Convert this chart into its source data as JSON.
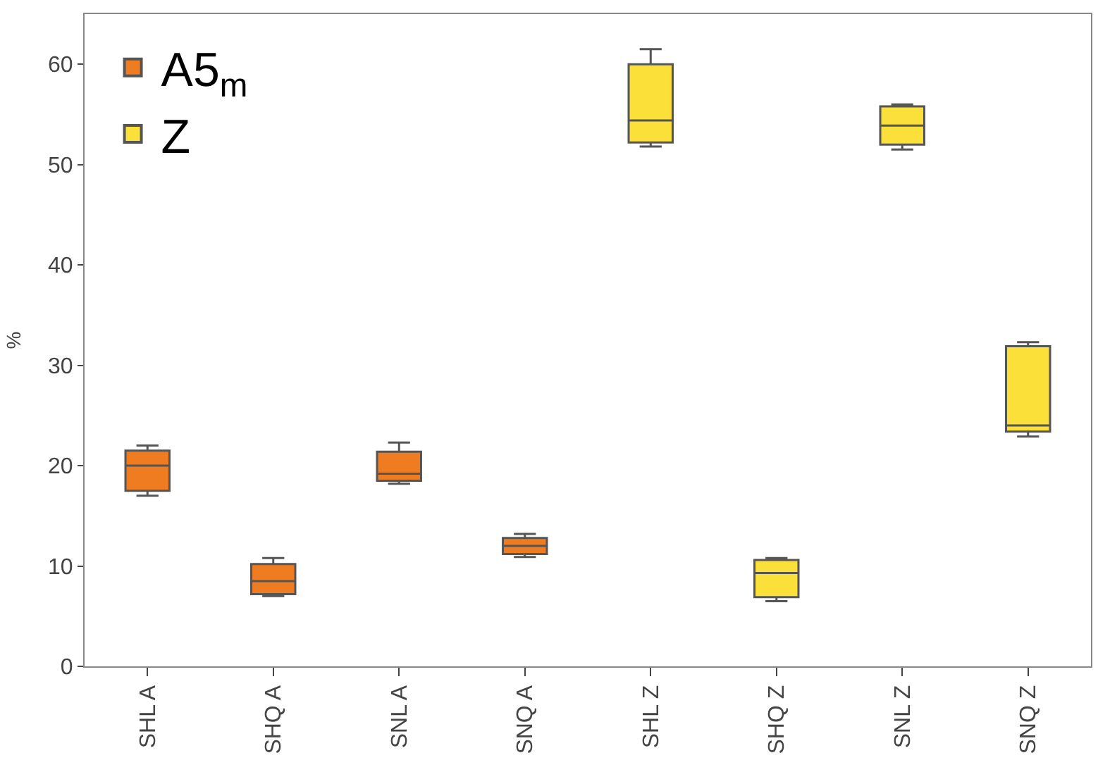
{
  "chart_data": {
    "type": "box",
    "ylabel": "%",
    "categories": [
      "SHL A",
      "SHQ A",
      "SNL A",
      "SNQ A",
      "SHL Z",
      "SHQ Z",
      "SNL Z",
      "SNQ Z"
    ],
    "series": [
      {
        "name": "A5$_{m}$",
        "color": "#f07c22",
        "boxes": [
          {
            "low": 17,
            "q1": 17.5,
            "median": 20,
            "q3": 21.5,
            "high": 22
          },
          {
            "low": 7,
            "q1": 7.2,
            "median": 8.5,
            "q3": 10.2,
            "high": 10.8
          },
          {
            "low": 18.2,
            "q1": 18.5,
            "median": 19.2,
            "q3": 21.4,
            "high": 22.3
          },
          {
            "low": 10.9,
            "q1": 11.2,
            "median": 12,
            "q3": 12.8,
            "high": 13.2
          },
          null,
          null,
          null,
          null
        ]
      },
      {
        "name": "Z",
        "color": "#fbe03a",
        "boxes": [
          null,
          null,
          null,
          null,
          {
            "low": 51.8,
            "q1": 52.2,
            "median": 54.4,
            "q3": 60,
            "high": 61.5
          },
          {
            "low": 6.5,
            "q1": 6.9,
            "median": 9.3,
            "q3": 10.6,
            "high": 10.8
          },
          {
            "low": 51.5,
            "q1": 52,
            "median": 53.9,
            "q3": 55.8,
            "high": 56
          },
          {
            "low": 22.9,
            "q1": 23.4,
            "median": 24,
            "q3": 31.9,
            "high": 32.3
          }
        ]
      }
    ],
    "ylim": [
      0,
      65
    ],
    "yticks": [
      0,
      10,
      20,
      30,
      40,
      50,
      60
    ],
    "legend": "top left"
  }
}
